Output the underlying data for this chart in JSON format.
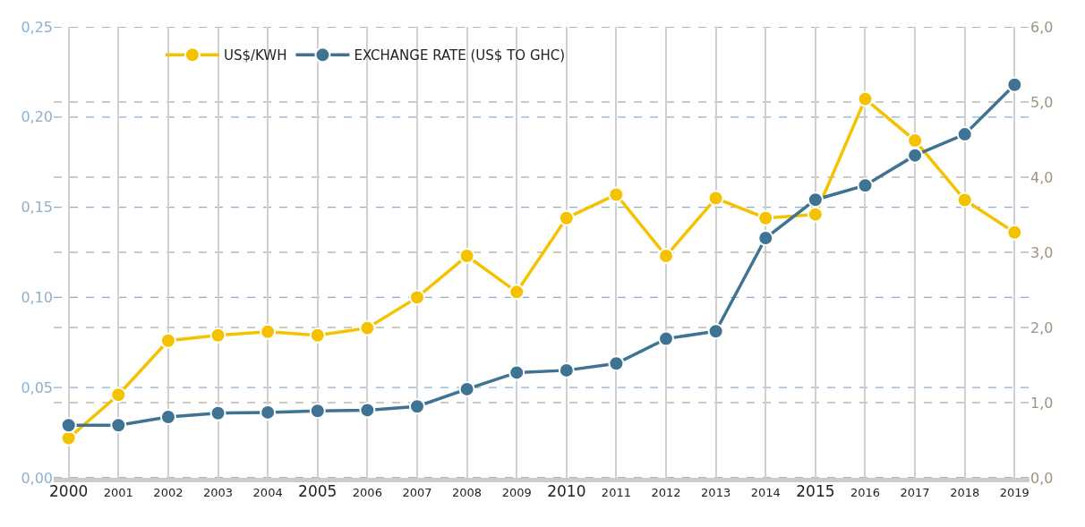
{
  "chart_data": {
    "type": "line",
    "categories": [
      "2000",
      "2001",
      "2002",
      "2003",
      "2004",
      "2005",
      "2006",
      "2007",
      "2008",
      "2009",
      "2010",
      "2011",
      "2012",
      "2013",
      "2014",
      "2015",
      "2016",
      "2017",
      "2018",
      "2019"
    ],
    "series": [
      {
        "name": "US$/KWH",
        "color": "#f5c200",
        "values": [
          0.022,
          0.046,
          0.076,
          0.079,
          0.081,
          0.079,
          0.083,
          0.1,
          0.123,
          0.103,
          0.144,
          0.157,
          0.123,
          0.155,
          0.144,
          0.146,
          0.21,
          0.187,
          0.154,
          0.136
        ]
      },
      {
        "name": "EXCHANGE RATE (US$ TO GHC)",
        "color": "#3f7393",
        "axis": "y2",
        "values": [
          0.7,
          0.7,
          0.81,
          0.86,
          0.87,
          0.89,
          0.9,
          0.95,
          1.18,
          1.4,
          1.43,
          1.52,
          1.85,
          1.95,
          3.19,
          3.7,
          3.89,
          4.29,
          4.57,
          5.23
        ]
      }
    ],
    "ylim": [
      0,
      0.25
    ],
    "yticks": [
      {
        "value": 0,
        "label": "0,00"
      },
      {
        "value": 0.05,
        "label": "0,05"
      },
      {
        "value": 0.1,
        "label": "0,10"
      },
      {
        "value": 0.15,
        "label": "0,15"
      },
      {
        "value": 0.2,
        "label": "0,20"
      },
      {
        "value": 0.25,
        "label": "0,25"
      }
    ],
    "y2lim": [
      0,
      6
    ],
    "y2ticks": [
      {
        "value": 0,
        "label": "0,0"
      },
      {
        "value": 1,
        "label": "1,0"
      },
      {
        "value": 2,
        "label": "2,0"
      },
      {
        "value": 3,
        "label": "3,0"
      },
      {
        "value": 4,
        "label": "4,0"
      },
      {
        "value": 5,
        "label": "5,0"
      },
      {
        "value": 6,
        "label": "6,0"
      }
    ],
    "grid": true,
    "legend": "top left",
    "marker": "circle",
    "line_style": "solid"
  }
}
